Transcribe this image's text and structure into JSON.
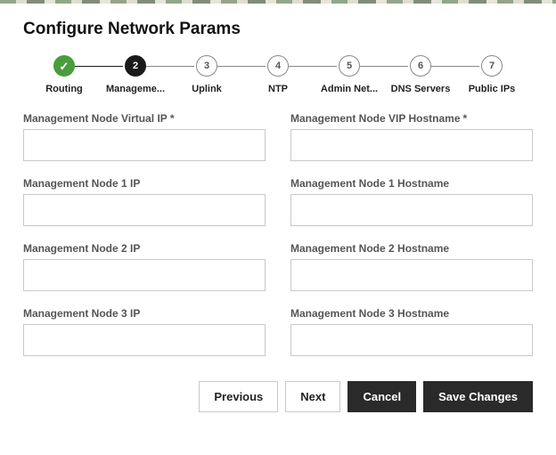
{
  "title": "Configure Network Params",
  "colors": {
    "completed": "#4a9d3f",
    "active": "#1a1a1a",
    "border": "#c9c9c9",
    "text_muted": "#555555",
    "btn_dark_bg": "#2a2a2a"
  },
  "stepper": {
    "steps": [
      {
        "num": "✓",
        "label": "Routing",
        "state": "completed"
      },
      {
        "num": "2",
        "label": "Manageme...",
        "state": "active"
      },
      {
        "num": "3",
        "label": "Uplink",
        "state": "pending"
      },
      {
        "num": "4",
        "label": "NTP",
        "state": "pending"
      },
      {
        "num": "5",
        "label": "Admin Net...",
        "state": "pending"
      },
      {
        "num": "6",
        "label": "DNS Servers",
        "state": "pending"
      },
      {
        "num": "7",
        "label": "Public IPs",
        "state": "pending"
      }
    ]
  },
  "fields": [
    {
      "label": "Management Node Virtual IP",
      "required": true,
      "value": ""
    },
    {
      "label": "Management Node VIP Hostname",
      "required": true,
      "value": ""
    },
    {
      "label": "Management Node 1 IP",
      "required": false,
      "value": ""
    },
    {
      "label": "Management Node 1 Hostname",
      "required": false,
      "value": ""
    },
    {
      "label": "Management Node 2 IP",
      "required": false,
      "value": ""
    },
    {
      "label": "Management Node 2 Hostname",
      "required": false,
      "value": ""
    },
    {
      "label": "Management Node 3 IP",
      "required": false,
      "value": ""
    },
    {
      "label": "Management Node 3 Hostname",
      "required": false,
      "value": ""
    }
  ],
  "buttons": {
    "previous": "Previous",
    "next": "Next",
    "cancel": "Cancel",
    "save": "Save Changes"
  }
}
